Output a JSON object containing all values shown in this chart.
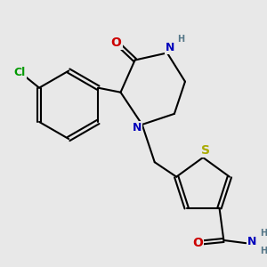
{
  "background_color": "#e8e8e8",
  "bond_color": "#000000",
  "bond_width": 1.5,
  "atom_colors": {
    "O": "#cc0000",
    "N": "#0000bb",
    "S": "#aaaa00",
    "Cl": "#009900",
    "H": "#557788",
    "C": "#000000"
  },
  "font_size_atom": 8.5
}
